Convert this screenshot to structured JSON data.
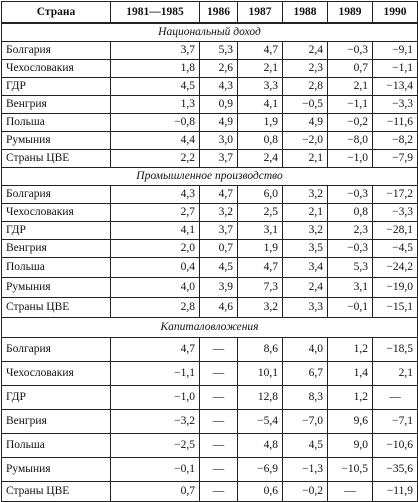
{
  "header": [
    "Страна",
    "1981—1985",
    "1986",
    "1987",
    "1988",
    "1989",
    "1990"
  ],
  "sections": [
    {
      "title": "Национальный доход",
      "rows": [
        [
          "Болгария",
          "3,7",
          "5,3",
          "4,7",
          "2,4",
          "−0,3",
          "−9,1"
        ],
        [
          "Чехословакия",
          "1,8",
          "2,6",
          "2,1",
          "2,3",
          "0,7",
          "−1,1"
        ],
        [
          "ГДР",
          "4,5",
          "4,3",
          "3,3",
          "2,8",
          "2,1",
          "−13,4"
        ],
        [
          "Венгрия",
          "1,3",
          "0,9",
          "4,1",
          "−0,5",
          "−1,1",
          "−3,3"
        ],
        [
          "Польша",
          "−0,8",
          "4,9",
          "1,9",
          "4,9",
          "−0,2",
          "−11,6"
        ],
        [
          "Румыния",
          "4,4",
          "3,0",
          "0,8",
          "−2,0",
          "−8,0",
          "−8,2"
        ],
        [
          "Страны ЦВЕ",
          "2,2",
          "3,7",
          "2,4",
          "2,1",
          "−1,0",
          "−7,9"
        ]
      ]
    },
    {
      "title": "Промышленное производство",
      "rows": [
        [
          "Болгария",
          "4,3",
          "4,7",
          "6,0",
          "3,2",
          "−0,3",
          "−17,2"
        ],
        [
          "Чехословакия",
          "2,7",
          "3,2",
          "2,5",
          "2,1",
          "0,8",
          "−3,3"
        ],
        [
          "ГДР",
          "4,1",
          "3,7",
          "3,1",
          "3,2",
          "2,3",
          "−28,1"
        ],
        [
          "Венгрия",
          "2,0",
          "0,7",
          "1,9",
          "3,5",
          "−0,3",
          "−4,5"
        ],
        [
          "Польша",
          "0,4",
          "4,5",
          "4,7",
          "3,4",
          "5,3",
          "−24,2"
        ],
        [
          "Румыния",
          "4,0",
          "3,9",
          "7,3",
          "2,4",
          "3,1",
          "−19,0"
        ],
        [
          "Страны ЦВЕ",
          "2,8",
          "4,6",
          "3,2",
          "3,3",
          "−0,1",
          "−15,1"
        ]
      ]
    },
    {
      "title": "Капиталовложения",
      "rows": [
        [
          "Болгария",
          "4,7",
          "—",
          "8,6",
          "4,0",
          "1,2",
          "−18,5"
        ],
        [
          "Чехословакия",
          "−1,1",
          "—",
          "10,1",
          "6,7",
          "1,4",
          "2,1"
        ],
        [
          "ГДР",
          "−1,0",
          "—",
          "12,8",
          "8,3",
          "1,2",
          "—"
        ],
        [
          "Венгрия",
          "−3,2",
          "—",
          "−5,4",
          "−7,0",
          "9,6",
          "−7,1"
        ],
        [
          "Польша",
          "−2,5",
          "—",
          "4,8",
          "4,5",
          "9,0",
          "−10,6"
        ],
        [
          "Румыния",
          "−0,1",
          "—",
          "−6,9",
          "−1,3",
          "−10,5",
          "−35,6"
        ],
        [
          "Страны ЦВЕ",
          "0,7",
          "—",
          "0,6",
          "−0,2",
          "—",
          "−11,9"
        ]
      ]
    }
  ]
}
